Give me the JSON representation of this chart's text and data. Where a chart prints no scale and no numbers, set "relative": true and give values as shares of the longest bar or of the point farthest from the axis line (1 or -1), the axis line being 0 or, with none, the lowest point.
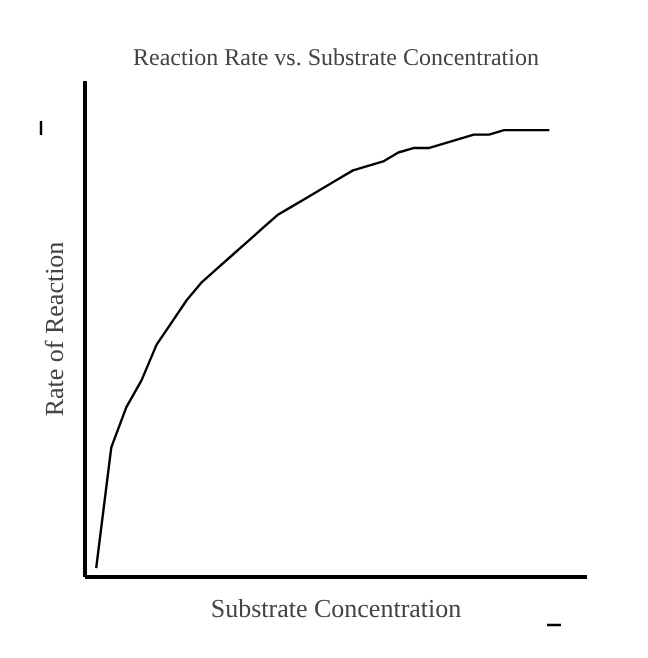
{
  "chart_data": {
    "type": "line",
    "title": "Reaction Rate vs. Substrate Concentration",
    "xlabel": "Substrate Concentration",
    "ylabel": "Rate of Reaction",
    "relative": true,
    "tick_labels": false,
    "marker": "none",
    "line_style": "solid",
    "categories": [
      null,
      null,
      null,
      null,
      null,
      null,
      null,
      null,
      null,
      null,
      null,
      null,
      null,
      null,
      null,
      null,
      null,
      null,
      null,
      null,
      null,
      null,
      null,
      null,
      null,
      null,
      null,
      null,
      null,
      null,
      null
    ],
    "series": [
      {
        "color": "#000000",
        "values": [
          0.02,
          0.29,
          0.38,
          0.44,
          0.52,
          0.57,
          0.62,
          0.66,
          0.69,
          0.72,
          0.75,
          0.78,
          0.81,
          0.83,
          0.85,
          0.87,
          0.89,
          0.91,
          0.92,
          0.93,
          0.95,
          0.96,
          0.96,
          0.97,
          0.98,
          0.99,
          0.99,
          1.0,
          1.0,
          1.0,
          1.0
        ]
      }
    ]
  }
}
